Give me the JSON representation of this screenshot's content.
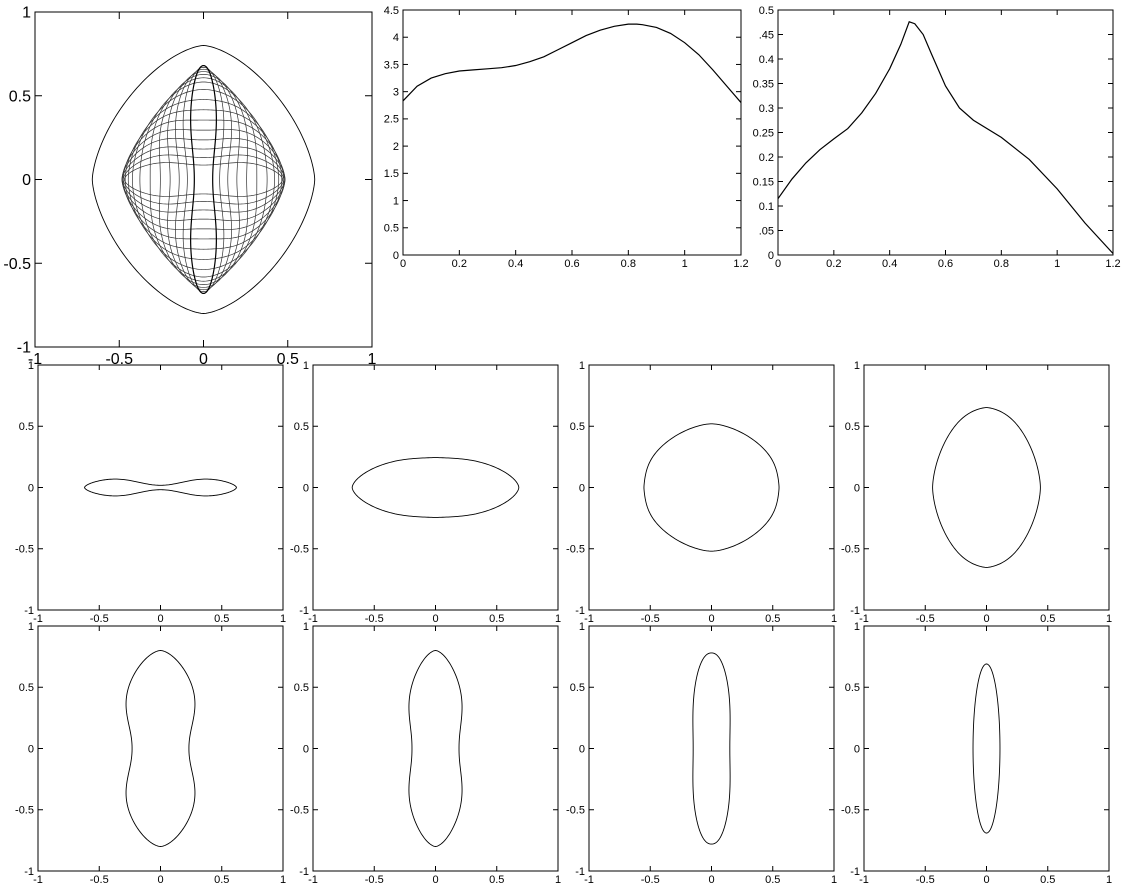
{
  "chart_data": [
    {
      "id": "overlay",
      "type": "line",
      "xticks": [
        "-1",
        "-0.5",
        "0",
        "0.5",
        "1"
      ],
      "yticks": [
        "-1",
        "-0.5",
        "0",
        "0.5",
        "1"
      ],
      "xlim": [
        -1,
        1
      ],
      "ylim": [
        -1,
        1
      ],
      "grid": false,
      "series_count": 16,
      "shape_params": {
        "a_range": [
          0.47,
          0.1
        ],
        "b_range": [
          0.15,
          0.68
        ],
        "k_range": [
          0.5,
          -0.38
        ]
      }
    },
    {
      "id": "curve-1",
      "type": "line",
      "xlim": [
        0,
        1.2
      ],
      "ylim": [
        0,
        4.5
      ],
      "xticks": [
        "0",
        "0.2",
        "0.4",
        "0.6",
        "0.8",
        "1",
        "1.2"
      ],
      "yticks": [
        "0",
        "0.5",
        "1",
        "1.5",
        "2",
        "2.5",
        "3",
        "3.5",
        "4",
        "4.5"
      ],
      "grid": false,
      "x": [
        0,
        0.05,
        0.1,
        0.15,
        0.2,
        0.25,
        0.3,
        0.35,
        0.4,
        0.45,
        0.5,
        0.55,
        0.6,
        0.65,
        0.7,
        0.75,
        0.8,
        0.83,
        0.85,
        0.9,
        0.95,
        1.0,
        1.05,
        1.1,
        1.15,
        1.2
      ],
      "y": [
        2.83,
        3.1,
        3.25,
        3.33,
        3.38,
        3.4,
        3.42,
        3.44,
        3.48,
        3.55,
        3.64,
        3.77,
        3.9,
        4.03,
        4.13,
        4.2,
        4.24,
        4.24,
        4.23,
        4.18,
        4.07,
        3.9,
        3.68,
        3.4,
        3.1,
        2.8
      ]
    },
    {
      "id": "curve-2",
      "type": "line",
      "xlim": [
        0,
        1.2
      ],
      "ylim": [
        0,
        0.5
      ],
      "xticks": [
        "0",
        "0.2",
        "0.4",
        "0.6",
        "0.8",
        "1",
        "1.2"
      ],
      "yticks": [
        "0",
        ".05",
        "0.1",
        "0.15",
        "0.2",
        "0.25",
        "0.3",
        "0.35",
        "0.4",
        ".45",
        "0.5"
      ],
      "grid": false,
      "x": [
        0,
        0.05,
        0.1,
        0.15,
        0.2,
        0.25,
        0.3,
        0.35,
        0.4,
        0.44,
        0.47,
        0.49,
        0.52,
        0.55,
        0.6,
        0.65,
        0.7,
        0.8,
        0.9,
        1.0,
        1.1,
        1.2
      ],
      "y": [
        0.115,
        0.155,
        0.188,
        0.215,
        0.237,
        0.258,
        0.29,
        0.33,
        0.38,
        0.43,
        0.476,
        0.472,
        0.45,
        0.41,
        0.345,
        0.3,
        0.275,
        0.24,
        0.195,
        0.135,
        0.065,
        0.003
      ]
    },
    {
      "id": "shape-1",
      "type": "line",
      "xticks": [
        "-1",
        "-0.5",
        "0",
        "0.5",
        "1"
      ],
      "yticks": [
        "-1",
        "-0.5",
        "0",
        "0.5",
        "1"
      ],
      "xlim": [
        -1,
        1
      ],
      "ylim": [
        -1,
        1
      ],
      "shape": {
        "a": 0.62,
        "b": 0.12,
        "c": 0.3,
        "k": 1.0
      }
    },
    {
      "id": "shape-2",
      "type": "line",
      "xticks": [
        "-1",
        "-0.5",
        "0",
        "0.5",
        "1"
      ],
      "yticks": [
        "-1",
        "-0.5",
        "0",
        "0.5",
        "1"
      ],
      "xlim": [
        -1,
        1
      ],
      "ylim": [
        -1,
        1
      ],
      "shape": {
        "a": 0.68,
        "b": 0.28,
        "c": 0.3,
        "k": 0.15
      }
    },
    {
      "id": "shape-3",
      "type": "line",
      "xticks": [
        "-1",
        "-0.5",
        "0",
        "0.5",
        "1"
      ],
      "yticks": [
        "-1",
        "-0.5",
        "0",
        "0.5",
        "1"
      ],
      "xlim": [
        -1,
        1
      ],
      "ylim": [
        -1,
        1
      ],
      "shape": {
        "a": 0.61,
        "b": 0.52,
        "c": 0.3,
        "k": -0.08
      }
    },
    {
      "id": "shape-4",
      "type": "line",
      "xticks": [
        "-1",
        "-0.5",
        "0",
        "0.5",
        "1"
      ],
      "yticks": [
        "-1",
        "-0.5",
        "0",
        "0.5",
        "1"
      ],
      "xlim": [
        -1,
        1
      ],
      "ylim": [
        -1,
        1
      ],
      "shape": {
        "a": 0.44,
        "b": 0.7,
        "c": 0.3,
        "k": 0.08
      }
    },
    {
      "id": "shape-5",
      "type": "line",
      "xticks": [
        "-1",
        "-0.5",
        "0",
        "0.5",
        "1"
      ],
      "yticks": [
        "-1",
        "-0.5",
        "0",
        "0.5",
        "1"
      ],
      "xlim": [
        -1,
        1
      ],
      "ylim": [
        -1,
        1
      ],
      "shape": {
        "a": 0.4,
        "b": 0.8,
        "c": 0.3,
        "k": -0.35
      }
    },
    {
      "id": "shape-6",
      "type": "line",
      "xticks": [
        "-1",
        "-0.5",
        "0",
        "0.5",
        "1"
      ],
      "yticks": [
        "-1",
        "-0.5",
        "0",
        "0.5",
        "1"
      ],
      "xlim": [
        -1,
        1
      ],
      "ylim": [
        -1,
        1
      ],
      "shape": {
        "a": 0.3,
        "b": 0.8,
        "c": 0.3,
        "k": -0.3
      }
    },
    {
      "id": "shape-7",
      "type": "line",
      "xticks": [
        "-1",
        "-0.5",
        "0",
        "0.5",
        "1"
      ],
      "yticks": [
        "-1",
        "-0.5",
        "0",
        "0.5",
        "1"
      ],
      "xlim": [
        -1,
        1
      ],
      "ylim": [
        -1,
        1
      ],
      "shape": {
        "a": 0.17,
        "b": 0.78,
        "c": 0.15,
        "k": -0.1
      }
    },
    {
      "id": "shape-8",
      "type": "line",
      "xticks": [
        "-1",
        "-0.5",
        "0",
        "0.5",
        "1"
      ],
      "yticks": [
        "-1",
        "-0.5",
        "0",
        "0.5",
        "1"
      ],
      "xlim": [
        -1,
        1
      ],
      "ylim": [
        -1,
        1
      ],
      "shape": {
        "a": 0.11,
        "b": 0.69,
        "c": 0.2,
        "k": 0.0
      }
    }
  ]
}
